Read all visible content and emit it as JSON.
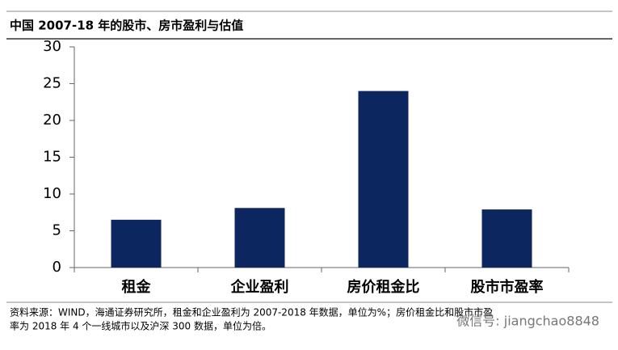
{
  "chart_data": {
    "type": "bar",
    "title": "中国 2007-18 年的股市、房市盈利与估值",
    "categories": [
      "租金",
      "企业盈利",
      "房价租金比",
      "股市市盈率"
    ],
    "values": [
      6.5,
      8.1,
      24,
      7.9
    ],
    "color": "#0c2660",
    "ylim": [
      0,
      30
    ],
    "yticks": [
      0,
      5,
      10,
      15,
      20,
      25,
      30
    ],
    "grid": false,
    "source": [
      "资料来源：WIND，海通证券研究所，租金和企业盈利为 2007-2018 年数据，单位为%；房价租金比和股市市盈",
      "率为 2018 年 4 个一线城市以及沪深 300 数据，单位为倍。"
    ],
    "watermark": "微信号: jiangchao8848"
  }
}
